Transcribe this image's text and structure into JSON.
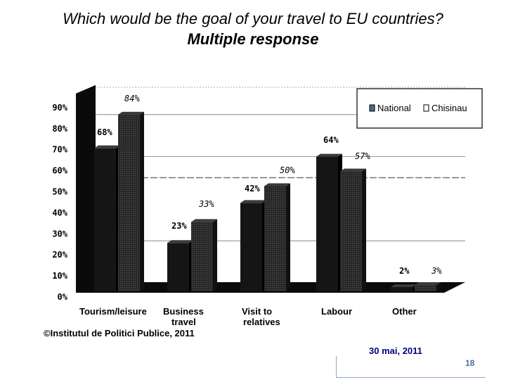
{
  "slide": {
    "title_line1": "Which would be the goal of your travel to EU countries?",
    "title_line2": "Multiple response",
    "copyright": "©Institutul de Politici Publice, 2011",
    "date": "30 mai, 2011",
    "page_number": "18"
  },
  "colors": {
    "national": "#151515",
    "chisinau": "#262626",
    "wall": "#0a0a0a",
    "gridline": "#777777"
  },
  "chart_data": {
    "type": "bar",
    "categories": [
      [
        "Tourism/leisure"
      ],
      [
        "Business",
        "travel"
      ],
      [
        "Visit to",
        "relatives"
      ],
      [
        "Labour"
      ],
      [
        "Other"
      ]
    ],
    "series": [
      {
        "name": "National",
        "values": [
          68,
          23,
          42,
          64,
          2
        ],
        "labels": [
          "68%",
          "23%",
          "42%",
          "64%",
          "2%"
        ]
      },
      {
        "name": "Chisinau",
        "values": [
          84,
          33,
          50,
          57,
          3
        ],
        "labels": [
          "84%",
          "33%",
          "50%",
          "57%",
          "3%"
        ]
      }
    ],
    "y_ticks": [
      "0%",
      "10%",
      "20%",
      "30%",
      "40%",
      "50%",
      "60%",
      "70%",
      "80%",
      "90%"
    ],
    "ylim": [
      0,
      90
    ],
    "legend_position": "top-right",
    "grid": true,
    "style": "3d"
  }
}
